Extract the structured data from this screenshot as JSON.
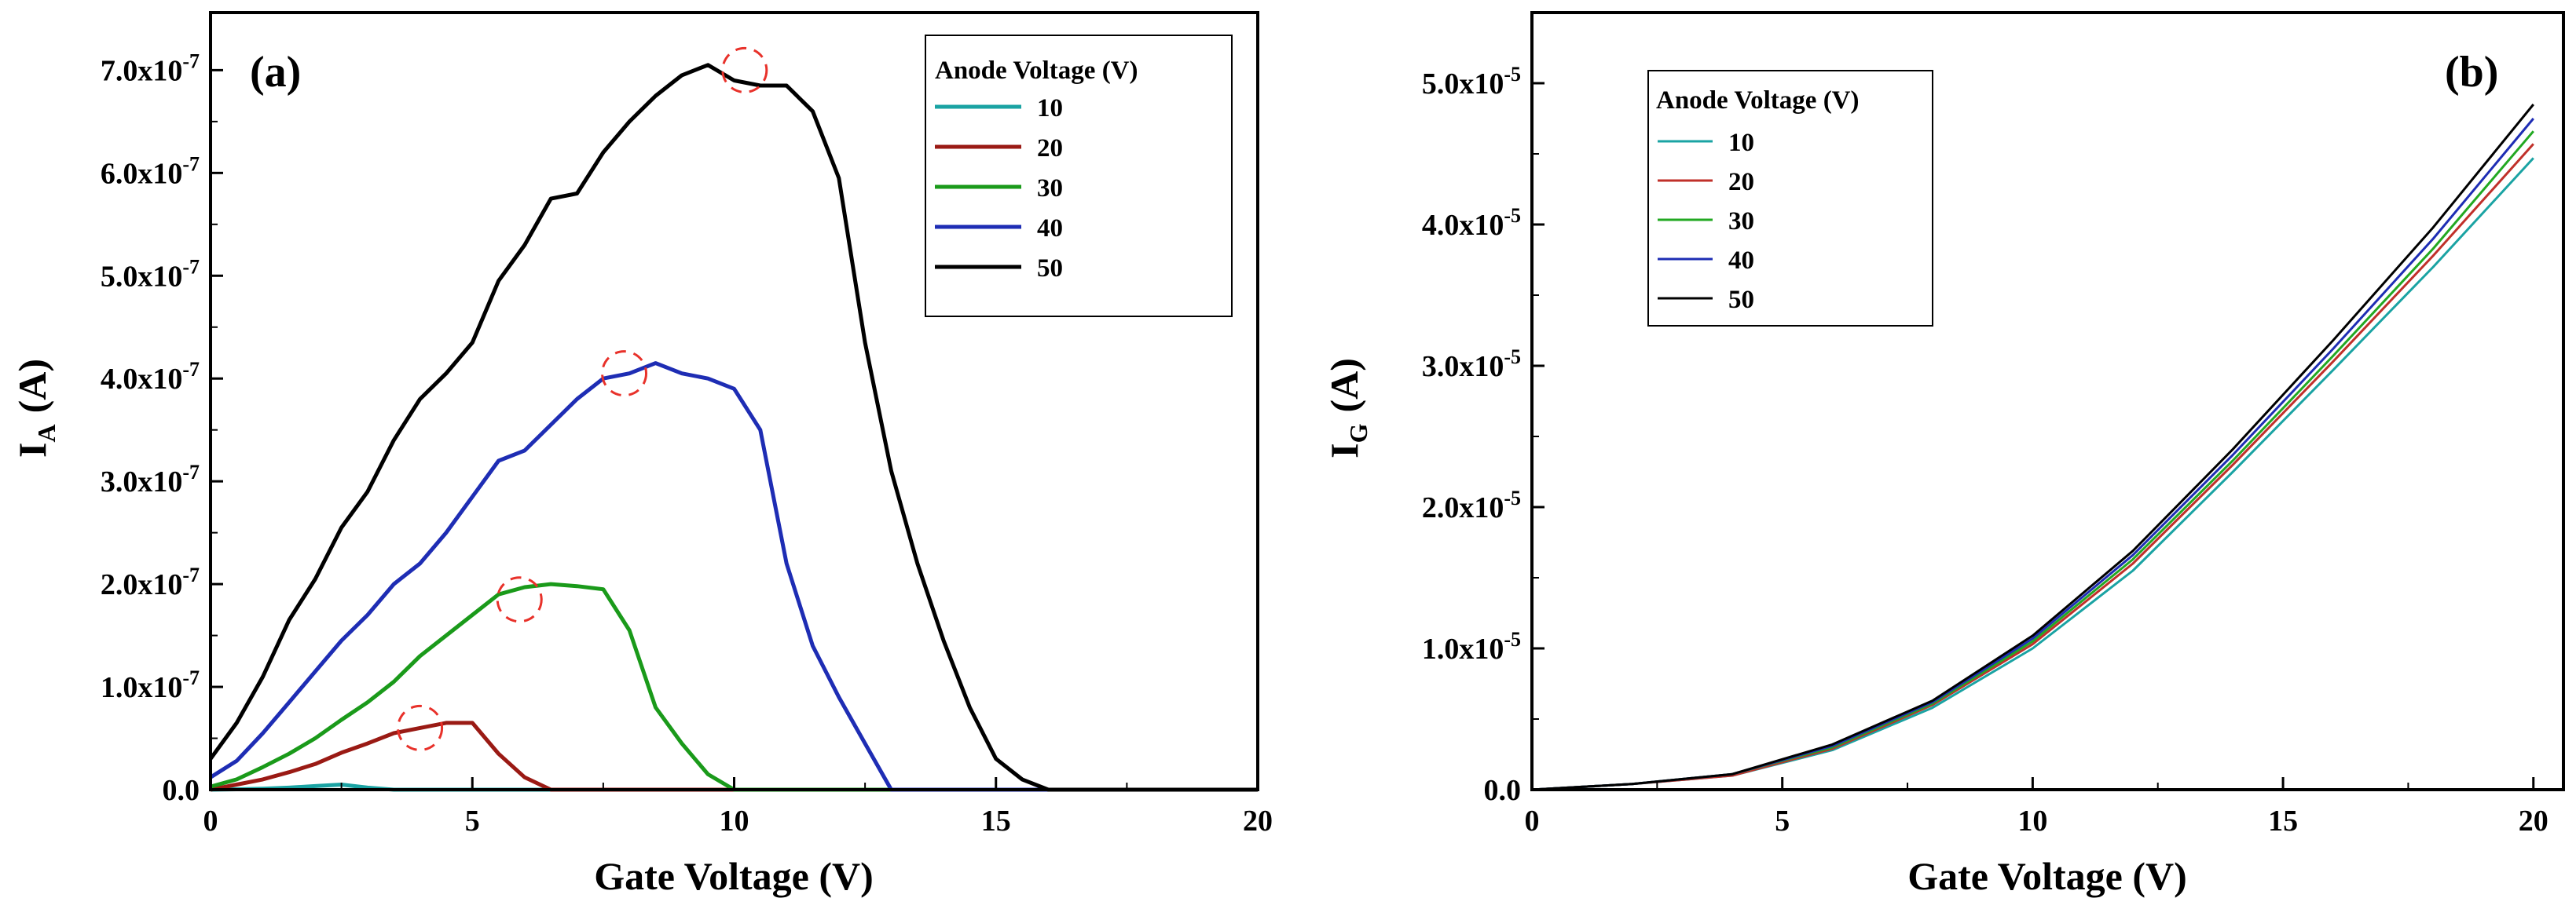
{
  "chart_data": [
    {
      "type": "line",
      "panel_label": "(a)",
      "xlabel": "Gate Voltage (V)",
      "ylabel": "I",
      "ylabel_sub": "A",
      "ylabel_unit": "(A)",
      "xlim": [
        0,
        20
      ],
      "ylim": [
        0,
        7.4e-07
      ],
      "x_ticks": [
        0,
        5,
        10,
        15,
        20
      ],
      "x_tick_labels": [
        "0",
        "5",
        "10",
        "15",
        "20"
      ],
      "y_ticks": [
        0,
        1e-07,
        2e-07,
        3e-07,
        4e-07,
        5e-07,
        6e-07,
        7e-07
      ],
      "y_tick_labels": [
        {
          "mant": "0.0",
          "exp": ""
        },
        {
          "mant": "1.0x10",
          "exp": "-7"
        },
        {
          "mant": "2.0x10",
          "exp": "-7"
        },
        {
          "mant": "3.0x10",
          "exp": "-7"
        },
        {
          "mant": "4.0x10",
          "exp": "-7"
        },
        {
          "mant": "5.0x10",
          "exp": "-7"
        },
        {
          "mant": "6.0x10",
          "exp": "-7"
        },
        {
          "mant": "7.0x10",
          "exp": "-7"
        }
      ],
      "legend_title": "Anode Voltage (V)",
      "legend_position": "top-right",
      "peak_markers": [
        {
          "x": 4.0,
          "y": 6e-08
        },
        {
          "x": 5.9,
          "y": 1.85e-07
        },
        {
          "x": 7.9,
          "y": 4.05e-07
        },
        {
          "x": 10.2,
          "y": 7e-07
        }
      ],
      "series": [
        {
          "name": "10",
          "color": "#1aa3a3",
          "x": [
            0,
            0.5,
            1,
            1.5,
            2,
            2.5,
            3,
            3.5,
            4,
            20
          ],
          "y": [
            0,
            4e-10,
            1e-09,
            2e-09,
            3.5e-09,
            5e-09,
            2e-09,
            0,
            0,
            0
          ]
        },
        {
          "name": "20",
          "color": "#9a1a14",
          "x": [
            0,
            0.5,
            1,
            1.5,
            2,
            2.5,
            3,
            3.5,
            4,
            4.5,
            5,
            5.5,
            6,
            6.5,
            20
          ],
          "y": [
            0,
            5e-09,
            1e-08,
            1.7e-08,
            2.5e-08,
            3.6e-08,
            4.5e-08,
            5.5e-08,
            6e-08,
            6.5e-08,
            6.5e-08,
            3.5e-08,
            1.2e-08,
            0,
            0
          ]
        },
        {
          "name": "30",
          "color": "#1a9a1a",
          "x": [
            0,
            0.5,
            1,
            1.5,
            2,
            2.5,
            3,
            3.5,
            4,
            4.5,
            5,
            5.5,
            6,
            6.5,
            7,
            7.5,
            8,
            8.5,
            9,
            9.5,
            10,
            20
          ],
          "y": [
            3e-09,
            1e-08,
            2.2e-08,
            3.5e-08,
            5e-08,
            6.8e-08,
            8.5e-08,
            1.05e-07,
            1.3e-07,
            1.5e-07,
            1.7e-07,
            1.9e-07,
            1.97e-07,
            2e-07,
            1.98e-07,
            1.95e-07,
            1.55e-07,
            8e-08,
            4.5e-08,
            1.5e-08,
            0,
            0
          ]
        },
        {
          "name": "40",
          "color": "#1e2db4",
          "x": [
            0,
            0.5,
            1,
            1.5,
            2,
            2.5,
            3,
            3.5,
            4,
            4.5,
            5,
            5.5,
            6,
            6.5,
            7,
            7.5,
            8,
            8.5,
            9,
            9.5,
            10,
            10.5,
            11,
            11.5,
            12,
            12.5,
            13,
            20
          ],
          "y": [
            1.2e-08,
            2.8e-08,
            5.5e-08,
            8.5e-08,
            1.15e-07,
            1.45e-07,
            1.7e-07,
            2e-07,
            2.2e-07,
            2.5e-07,
            2.85e-07,
            3.2e-07,
            3.3e-07,
            3.55e-07,
            3.8e-07,
            4e-07,
            4.05e-07,
            4.15e-07,
            4.05e-07,
            4e-07,
            3.9e-07,
            3.5e-07,
            2.2e-07,
            1.4e-07,
            9e-08,
            4.5e-08,
            0,
            0
          ]
        },
        {
          "name": "50",
          "color": "#000000",
          "x": [
            0,
            0.5,
            1,
            1.5,
            2,
            2.5,
            3,
            3.5,
            4,
            4.5,
            5,
            5.5,
            6,
            6.5,
            7,
            7.5,
            8,
            8.5,
            9,
            9.5,
            10,
            10.5,
            11,
            11.5,
            12,
            12.5,
            13,
            13.5,
            14,
            14.5,
            15,
            15.5,
            16,
            16.5,
            20
          ],
          "y": [
            3e-08,
            6.5e-08,
            1.1e-07,
            1.65e-07,
            2.05e-07,
            2.55e-07,
            2.9e-07,
            3.4e-07,
            3.8e-07,
            4.05e-07,
            4.35e-07,
            4.95e-07,
            5.3e-07,
            5.75e-07,
            5.8e-07,
            6.2e-07,
            6.5e-07,
            6.75e-07,
            6.95e-07,
            7.05e-07,
            6.9e-07,
            6.85e-07,
            6.85e-07,
            6.6e-07,
            5.95e-07,
            4.35e-07,
            3.1e-07,
            2.2e-07,
            1.45e-07,
            8e-08,
            3e-08,
            1e-08,
            0,
            0,
            0
          ]
        }
      ]
    },
    {
      "type": "line",
      "panel_label": "(b)",
      "xlabel": "Gate Voltage (V)",
      "ylabel": "I",
      "ylabel_sub": "G",
      "ylabel_unit": "(A)",
      "xlim": [
        0,
        20.6
      ],
      "ylim": [
        0,
        5.5e-05
      ],
      "x_ticks": [
        0,
        5,
        10,
        15,
        20
      ],
      "x_tick_labels": [
        "0",
        "5",
        "10",
        "15",
        "20"
      ],
      "y_ticks": [
        0,
        1e-05,
        2e-05,
        3e-05,
        4e-05,
        5e-05
      ],
      "y_tick_labels": [
        {
          "mant": "0.0",
          "exp": ""
        },
        {
          "mant": "1.0x10",
          "exp": "-5"
        },
        {
          "mant": "2.0x10",
          "exp": "-5"
        },
        {
          "mant": "3.0x10",
          "exp": "-5"
        },
        {
          "mant": "4.0x10",
          "exp": "-5"
        },
        {
          "mant": "5.0x10",
          "exp": "-5"
        }
      ],
      "legend_title": "Anode Voltage (V)",
      "legend_position": "top-left",
      "series": [
        {
          "name": "10",
          "color": "#1aa3a3",
          "x": [
            0,
            2,
            4,
            6,
            8,
            10,
            12,
            14,
            16,
            18,
            20
          ],
          "y": [
            0,
            4e-07,
            1e-06,
            2.8e-06,
            5.8e-06,
            1e-05,
            1.55e-05,
            2.25e-05,
            2.97e-05,
            3.7e-05,
            4.47e-05
          ]
        },
        {
          "name": "20",
          "color": "#c0302a",
          "x": [
            0,
            2,
            4,
            6,
            8,
            10,
            12,
            14,
            16,
            18,
            20
          ],
          "y": [
            0,
            4e-07,
            1e-06,
            2.9e-06,
            6e-06,
            1.03e-05,
            1.6e-05,
            2.3e-05,
            3.03e-05,
            3.78e-05,
            4.57e-05
          ]
        },
        {
          "name": "30",
          "color": "#22a822",
          "x": [
            0,
            2,
            4,
            6,
            8,
            10,
            12,
            14,
            16,
            18,
            20
          ],
          "y": [
            0,
            4e-07,
            1.1e-06,
            3e-06,
            6.1e-06,
            1.05e-05,
            1.63e-05,
            2.33e-05,
            3.07e-05,
            3.83e-05,
            4.66e-05
          ]
        },
        {
          "name": "40",
          "color": "#1e2db4",
          "x": [
            0,
            2,
            4,
            6,
            8,
            10,
            12,
            14,
            16,
            18,
            20
          ],
          "y": [
            0,
            4e-07,
            1.1e-06,
            3.1e-06,
            6.2e-06,
            1.07e-05,
            1.66e-05,
            2.37e-05,
            3.12e-05,
            3.9e-05,
            4.75e-05
          ]
        },
        {
          "name": "50",
          "color": "#000000",
          "x": [
            0,
            2,
            4,
            6,
            8,
            10,
            12,
            14,
            16,
            18,
            20
          ],
          "y": [
            0,
            4e-07,
            1.1e-06,
            3.2e-06,
            6.3e-06,
            1.09e-05,
            1.69e-05,
            2.41e-05,
            3.18e-05,
            3.98e-05,
            4.85e-05
          ]
        }
      ]
    }
  ]
}
